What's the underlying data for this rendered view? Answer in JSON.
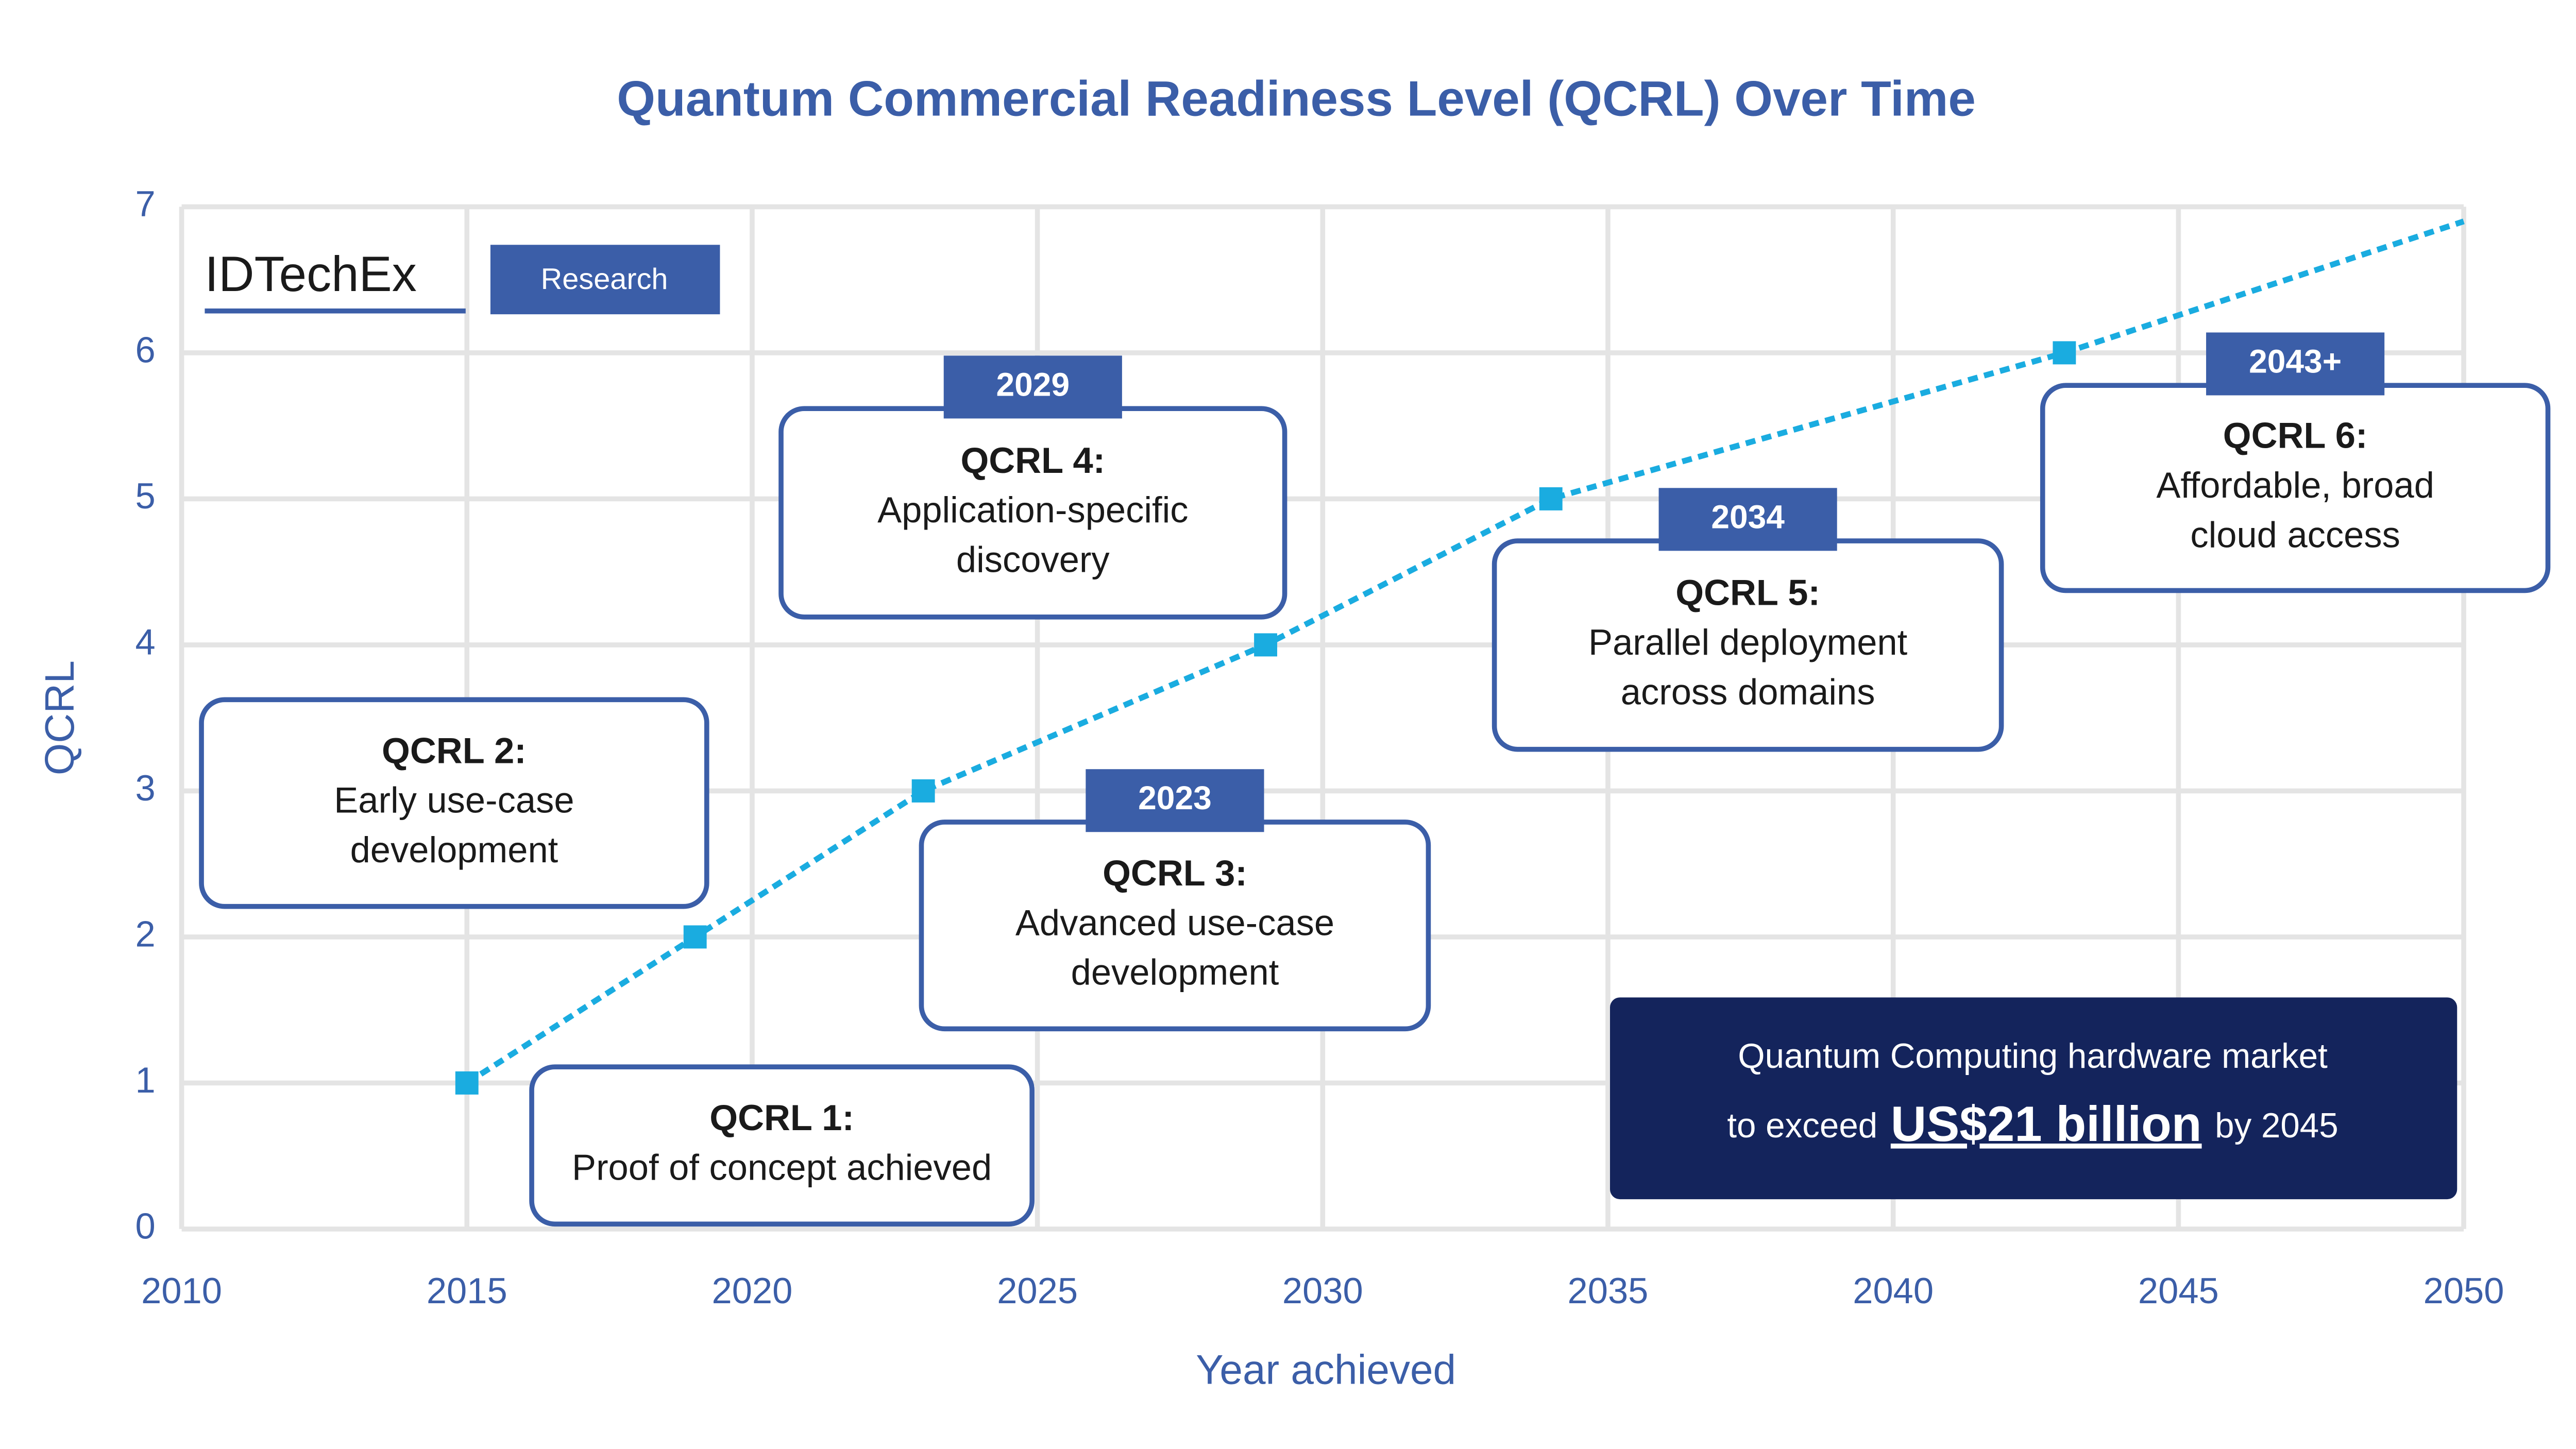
{
  "chart_data": {
    "type": "line",
    "title": "Quantum Commercial Readiness Level (QCRL) Over Time",
    "x_label": "Year achieved",
    "y_label": "QCRL",
    "x": [
      2015,
      2019,
      2023,
      2029,
      2034,
      2043,
      2050
    ],
    "series": [
      {
        "name": "QCRL",
        "color": "#1aace0",
        "values": [
          1,
          2,
          3,
          4,
          5,
          6,
          6.9
        ]
      }
    ],
    "xlim": [
      2010,
      2050
    ],
    "xticks": [
      2010,
      2015,
      2020,
      2025,
      2030,
      2035,
      2040,
      2045,
      2050
    ],
    "ylim": [
      0,
      7
    ],
    "yticks": [
      0,
      1,
      2,
      3,
      4,
      5,
      6,
      7
    ],
    "grid": true,
    "logo": {
      "name": "IDTechEx",
      "tag": "Research"
    },
    "annotations": [
      {
        "heading": "QCRL 1:",
        "lines": [
          "Proof of concept achieved"
        ]
      },
      {
        "heading": "QCRL 2:",
        "lines": [
          "Early use-case",
          "development"
        ]
      },
      {
        "badge": "2023",
        "heading": "QCRL 3:",
        "lines": [
          "Advanced use-case",
          "development"
        ]
      },
      {
        "badge": "2029",
        "heading": "QCRL 4:",
        "lines": [
          "Application-specific",
          "discovery"
        ]
      },
      {
        "badge": "2034",
        "heading": "QCRL 5:",
        "lines": [
          "Parallel deployment",
          "across domains"
        ]
      },
      {
        "badge": "2043+",
        "heading": "QCRL 6:",
        "lines": [
          "Affordable, broad",
          "cloud access"
        ]
      }
    ],
    "callout": {
      "line1": "Quantum Computing hardware market",
      "pre": "to exceed",
      "highlight": "US$21 billion",
      "post": "by 2045"
    }
  }
}
